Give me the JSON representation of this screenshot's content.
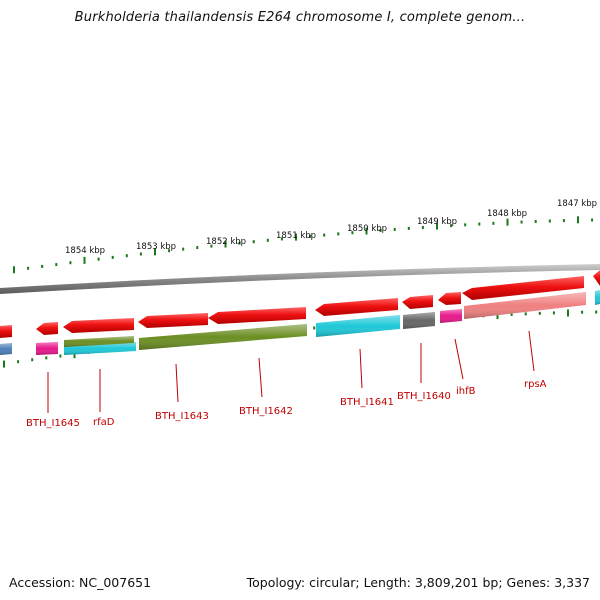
{
  "title": "Burkholderia thailandensis E264 chromosome I, complete genom...",
  "footer": {
    "accession": "Accession: NC_007651",
    "summary": "Topology: circular; Length: 3,809,201 bp; Genes: 3,337"
  },
  "ruler": {
    "labels": [
      "1854 kbp",
      "1853 kbp",
      "1852 kbp",
      "1851 kbp",
      "1850 kbp",
      "1849 kbp",
      "1848 kbp",
      "1847 kbp"
    ],
    "tick_color": "#1a7a1a"
  },
  "genes": [
    {
      "label": "BTH_I1645",
      "color": "#4d7fb8"
    },
    {
      "label": "rfaD",
      "color": "#e8188c"
    },
    {
      "label": "BTH_I1643",
      "color": "#1ec8d8"
    },
    {
      "label": "BTH_I1642",
      "color": "#6b8e23"
    },
    {
      "label": "BTH_I1641",
      "color": "#1ec8d8"
    },
    {
      "label": "BTH_I1640",
      "color": "#666666"
    },
    {
      "label": "ihfB",
      "color": "#e8188c"
    },
    {
      "label": "rpsA",
      "color": "#f08080"
    }
  ],
  "colors": {
    "cds": "#ee1111",
    "backbone": "#888888",
    "gene_label": "#c00000"
  }
}
